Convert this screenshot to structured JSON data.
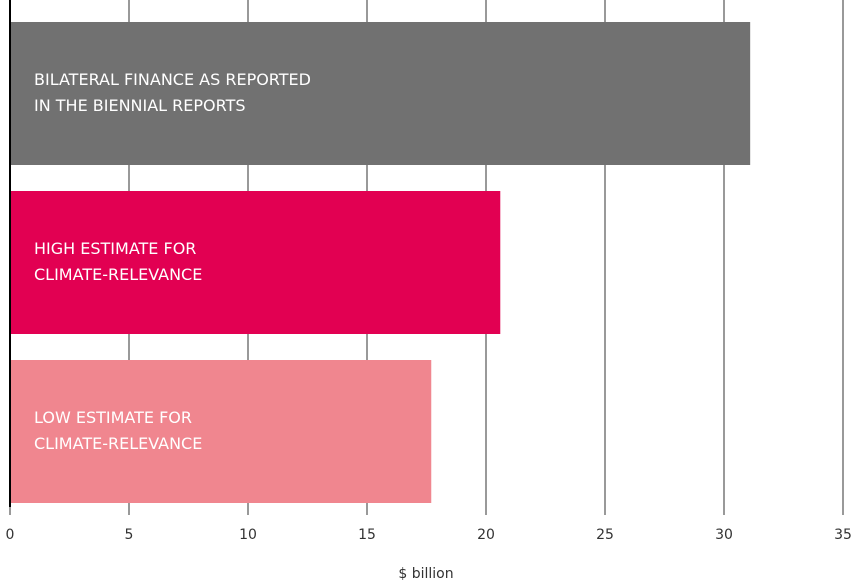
{
  "chart_data": {
    "type": "barh",
    "categories": [
      [
        "BILATERAL FINANCE AS REPORTED",
        "IN THE BIENNIAL REPORTS"
      ],
      [
        "HIGH ESTIMATE FOR",
        "CLIMATE-RELEVANCE"
      ],
      [
        "LOW ESTIMATE FOR",
        "CLIMATE-RELEVANCE"
      ]
    ],
    "values": [
      31.1,
      20.6,
      17.7
    ],
    "colors": [
      "#717171",
      "#e20052",
      "#f0868f"
    ],
    "xlabel": "$ billion",
    "xlim": [
      0,
      35
    ],
    "xticks": [
      0,
      5,
      10,
      15,
      20,
      25,
      30,
      35
    ],
    "grid": true
  }
}
